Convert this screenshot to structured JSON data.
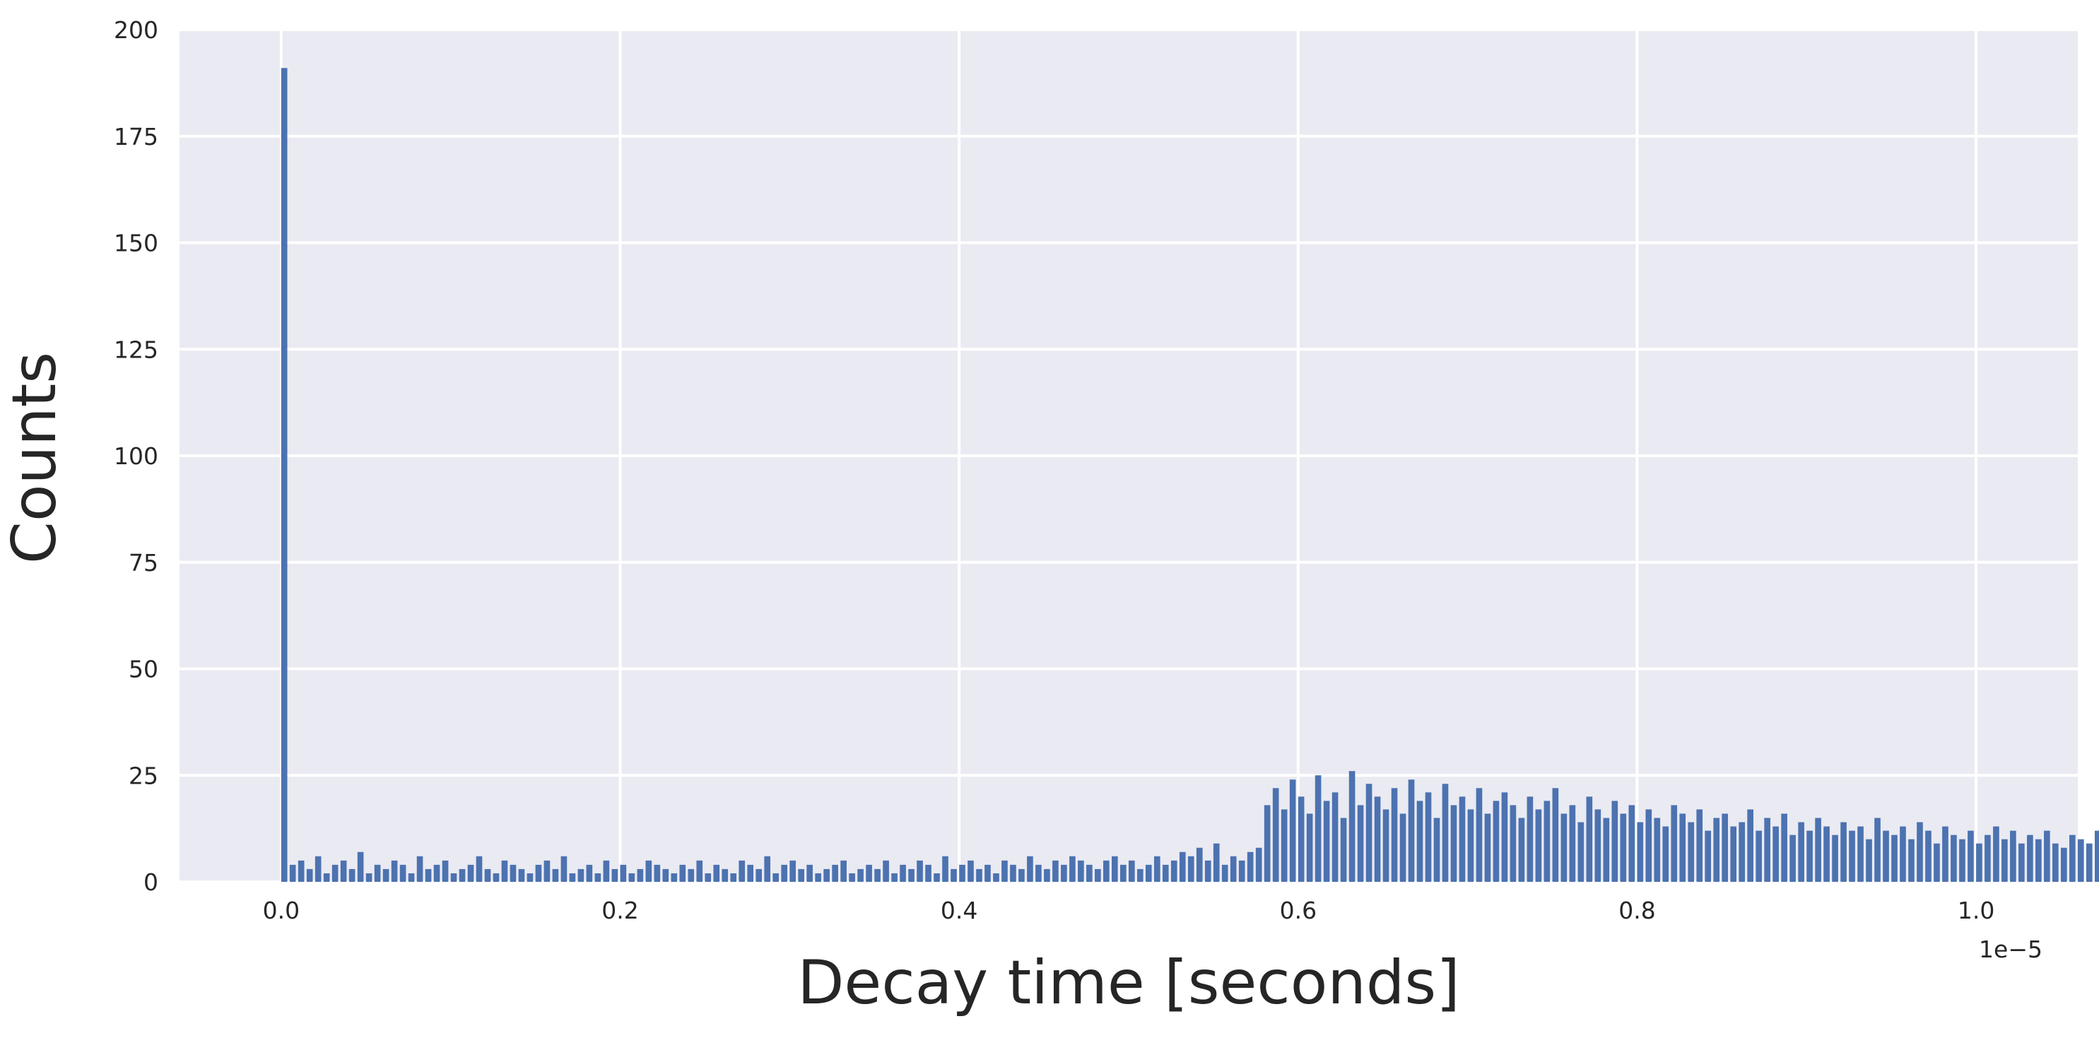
{
  "chart_data": {
    "type": "bar",
    "title": "",
    "xlabel": "Decay time [seconds]",
    "ylabel": "Counts",
    "x_offset_label": "1e−5",
    "xlim": [
      -0.06,
      1.06
    ],
    "ylim": [
      0,
      200
    ],
    "x_ticks": [
      0.0,
      0.2,
      0.4,
      0.6,
      0.8,
      1.0
    ],
    "x_tick_labels": [
      "0.0",
      "0.2",
      "0.4",
      "0.6",
      "0.8",
      "1.0"
    ],
    "y_ticks": [
      0,
      25,
      50,
      75,
      100,
      125,
      150,
      175,
      200
    ],
    "y_tick_labels": [
      "0",
      "25",
      "50",
      "75",
      "100",
      "125",
      "150",
      "175",
      "200"
    ],
    "grid": true,
    "background_color": "#eaeaf2",
    "grid_color": "#ffffff",
    "bar_color": "#4c72b0",
    "bin_width": 0.005,
    "bin_start": 0.0,
    "counts": [
      191,
      4,
      5,
      3,
      6,
      2,
      4,
      5,
      3,
      7,
      2,
      4,
      3,
      5,
      4,
      2,
      6,
      3,
      4,
      5,
      2,
      3,
      4,
      6,
      3,
      2,
      5,
      4,
      3,
      2,
      4,
      5,
      3,
      6,
      2,
      3,
      4,
      2,
      5,
      3,
      4,
      2,
      3,
      5,
      4,
      3,
      2,
      4,
      3,
      5,
      2,
      4,
      3,
      2,
      5,
      4,
      3,
      6,
      2,
      4,
      5,
      3,
      4,
      2,
      3,
      4,
      5,
      2,
      3,
      4,
      3,
      5,
      2,
      4,
      3,
      5,
      4,
      2,
      6,
      3,
      4,
      5,
      3,
      4,
      2,
      5,
      4,
      3,
      6,
      4,
      3,
      5,
      4,
      6,
      5,
      4,
      3,
      5,
      6,
      4,
      5,
      3,
      4,
      6,
      4,
      5,
      7,
      6,
      8,
      5,
      9,
      4,
      6,
      5,
      7,
      8,
      18,
      22,
      17,
      24,
      20,
      16,
      25,
      19,
      21,
      15,
      26,
      18,
      23,
      20,
      17,
      22,
      16,
      24,
      19,
      21,
      15,
      23,
      18,
      20,
      17,
      22,
      16,
      19,
      21,
      18,
      15,
      20,
      17,
      19,
      22,
      16,
      18,
      14,
      20,
      17,
      15,
      19,
      16,
      18,
      14,
      17,
      15,
      13,
      18,
      16,
      14,
      17,
      12,
      15,
      16,
      13,
      14,
      17,
      12,
      15,
      13,
      16,
      11,
      14,
      12,
      15,
      13,
      11,
      14,
      12,
      13,
      10,
      15,
      12,
      11,
      13,
      10,
      14,
      12,
      9,
      13,
      11,
      10,
      12,
      9,
      11,
      13,
      10,
      12,
      9,
      11,
      10,
      12,
      9,
      8,
      11,
      10,
      9,
      12,
      8,
      10,
      9,
      11,
      8,
      10,
      9,
      7,
      11,
      9,
      8,
      10,
      7,
      9,
      8,
      10,
      7,
      9,
      8,
      6,
      10,
      8,
      7,
      9,
      6,
      8,
      7,
      9,
      6,
      8,
      7,
      6,
      9,
      7,
      8,
      6,
      7,
      8,
      6,
      9,
      7,
      6,
      8,
      5,
      7,
      6,
      8,
      5,
      7,
      6,
      7,
      5,
      8,
      6,
      7,
      5,
      6,
      7,
      5,
      8,
      6,
      5,
      7,
      6,
      5,
      7,
      4,
      6,
      5,
      7,
      6,
      4,
      5,
      7,
      5,
      6,
      4,
      6,
      5,
      7,
      4,
      6,
      5,
      4,
      6,
      5,
      7,
      4,
      5,
      6,
      4,
      5,
      6,
      4,
      7,
      5,
      4,
      6,
      5,
      4,
      5,
      6,
      4,
      5,
      3,
      6,
      5,
      4,
      6,
      3,
      5,
      4,
      6,
      5,
      4,
      3,
      5,
      6,
      4,
      5,
      3,
      6,
      4,
      5,
      4,
      3,
      5,
      4,
      6,
      3,
      5,
      4,
      3,
      5,
      6,
      4,
      5,
      3,
      4,
      6,
      3,
      5,
      4,
      3,
      5,
      4,
      6,
      3,
      4,
      5,
      3,
      4,
      6,
      4,
      3,
      5,
      4,
      3,
      6,
      4,
      5,
      3,
      4,
      5,
      3,
      6,
      4,
      3,
      5,
      4,
      3,
      5,
      4,
      6,
      3,
      4,
      5,
      3,
      4,
      5,
      6,
      3,
      4,
      5,
      3,
      4,
      5,
      3,
      4,
      6,
      3,
      5,
      4,
      3,
      5,
      4,
      3,
      6,
      4,
      5,
      3,
      4,
      5,
      3,
      4,
      6,
      3,
      5,
      4,
      3,
      6,
      5,
      4,
      3,
      5,
      4,
      6,
      3,
      5,
      4,
      3,
      5,
      6,
      4,
      3,
      5,
      4,
      3,
      6,
      4,
      5,
      3,
      4,
      5,
      6,
      4,
      3,
      5,
      4,
      7,
      5,
      6,
      4,
      5,
      6,
      4,
      7,
      5,
      6,
      4,
      8,
      5,
      6,
      7,
      5,
      6,
      4,
      7,
      5,
      8,
      6,
      5,
      7,
      4,
      6,
      5,
      7,
      6,
      8,
      20,
      17,
      18,
      14,
      15,
      12,
      13,
      11,
      12,
      10,
      11,
      12,
      10,
      9,
      11,
      10
    ]
  }
}
